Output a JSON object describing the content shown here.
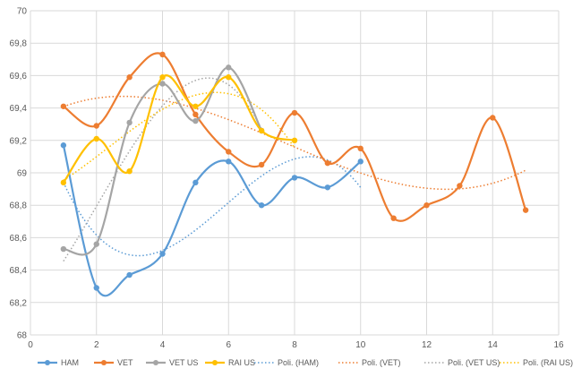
{
  "chart_data": {
    "type": "line",
    "title": "",
    "xlabel": "",
    "ylabel": "",
    "xlim": [
      0,
      16
    ],
    "ylim": [
      68,
      70
    ],
    "x_ticks": [
      "0",
      "2",
      "4",
      "6",
      "8",
      "10",
      "12",
      "14",
      "16"
    ],
    "y_ticks": [
      "68",
      "68,2",
      "68,4",
      "68,6",
      "68,8",
      "69",
      "69,2",
      "69,4",
      "69,6",
      "69,8",
      "70"
    ],
    "grid": "vertical and horizontal",
    "legend_position": "bottom",
    "series": [
      {
        "name": "HAM",
        "color": "#5b9bd5",
        "x": [
          1,
          2,
          3,
          4,
          5,
          6,
          7,
          8,
          9,
          10
        ],
        "y": [
          69.17,
          68.29,
          68.37,
          68.5,
          68.94,
          69.07,
          68.8,
          68.97,
          68.91,
          69.07
        ]
      },
      {
        "name": "VET",
        "color": "#ed7d31",
        "x": [
          1,
          2,
          3,
          4,
          5,
          6,
          7,
          8,
          9,
          10,
          11,
          12,
          13,
          14,
          15
        ],
        "y": [
          69.41,
          69.29,
          69.59,
          69.73,
          69.36,
          69.13,
          69.05,
          69.37,
          69.06,
          69.15,
          68.72,
          68.8,
          68.92,
          69.34,
          68.77
        ]
      },
      {
        "name": "VET US",
        "color": "#a5a5a5",
        "x": [
          1,
          2,
          3,
          4,
          5,
          6,
          7
        ],
        "y": [
          68.53,
          68.56,
          69.31,
          69.55,
          69.32,
          69.65,
          69.26
        ]
      },
      {
        "name": "RAI US",
        "color": "#ffc000",
        "x": [
          1,
          2,
          3,
          4,
          5,
          6,
          7,
          8
        ],
        "y": [
          68.94,
          69.21,
          69.01,
          69.59,
          69.41,
          69.59,
          69.26,
          69.2
        ]
      }
    ],
    "trendlines": [
      {
        "name": "Poli. (HAM)",
        "color": "#5b9bd5",
        "x": [
          1,
          10
        ]
      },
      {
        "name": "Poli. (VET)",
        "color": "#ed7d31",
        "x": [
          1,
          15
        ]
      },
      {
        "name": "Poli. (VET US)",
        "color": "#a5a5a5",
        "x": [
          1,
          7
        ]
      },
      {
        "name": "Poli. (RAI US)",
        "color": "#ffc000",
        "x": [
          1,
          8
        ]
      }
    ]
  }
}
